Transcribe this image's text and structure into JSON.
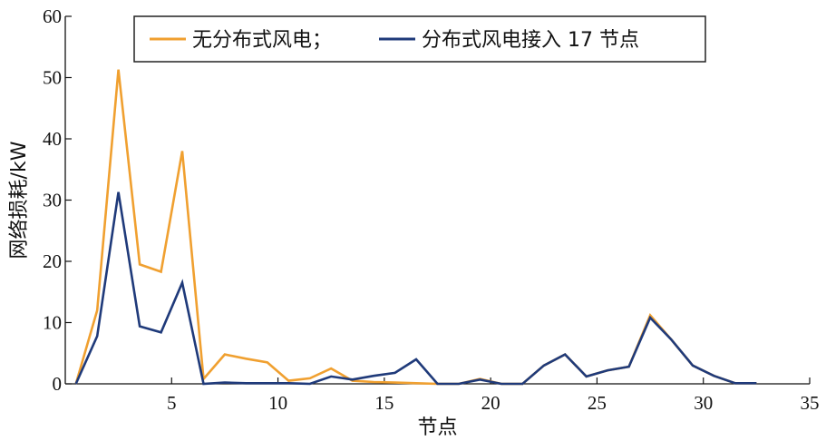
{
  "chart_data": {
    "type": "line",
    "xlabel": "节点",
    "ylabel": "网络损耗/kW",
    "xlim": [
      0,
      35
    ],
    "ylim": [
      0,
      60
    ],
    "xticks": [
      5,
      10,
      15,
      20,
      25,
      30,
      35
    ],
    "yticks": [
      0,
      10,
      20,
      30,
      40,
      50,
      60
    ],
    "grid": false,
    "legend": {
      "placement": "top",
      "text_sep": "；"
    },
    "series": [
      {
        "name": "无分布式风电",
        "color": "#f0a030",
        "x": [
          0.5,
          1.5,
          2.5,
          3.5,
          4.5,
          5.5,
          6.5,
          7.5,
          8.5,
          9.5,
          10.5,
          11.5,
          12.5,
          13.5,
          14.5,
          15.5,
          16.5,
          17.5,
          18.5,
          19.5,
          20.5,
          21.5,
          22.5,
          23.5,
          24.5,
          25.5,
          26.5,
          27.5,
          28.5,
          29.5,
          30.5,
          31.5,
          32.5
        ],
        "values": [
          0,
          12,
          51.3,
          19.5,
          18.3,
          38,
          0.8,
          4.8,
          4.1,
          3.5,
          0.5,
          0.9,
          2.5,
          0.5,
          0.3,
          0.2,
          0.1,
          0,
          0,
          0.8,
          0,
          0,
          3,
          4.8,
          1.2,
          2.2,
          2.8,
          11.2,
          7.2,
          3,
          1.3,
          0.1,
          0.1
        ]
      },
      {
        "name": "分布式风电接入 17 节点",
        "color": "#1f3a7a",
        "x": [
          0.5,
          1.5,
          2.5,
          3.5,
          4.5,
          5.5,
          6.5,
          7.5,
          8.5,
          9.5,
          10.5,
          11.5,
          12.5,
          13.5,
          14.5,
          15.5,
          16.5,
          17.5,
          18.5,
          19.5,
          20.5,
          21.5,
          22.5,
          23.5,
          24.5,
          25.5,
          26.5,
          27.5,
          28.5,
          29.5,
          30.5,
          31.5,
          32.5
        ],
        "values": [
          0,
          7.8,
          31.3,
          9.4,
          8.4,
          16.5,
          0,
          0.2,
          0.1,
          0.1,
          0.1,
          0,
          1.2,
          0.7,
          1.3,
          1.8,
          4,
          0,
          0,
          0.7,
          0,
          0,
          3,
          4.8,
          1.2,
          2.2,
          2.8,
          10.8,
          7.2,
          3,
          1.3,
          0.1,
          0.1
        ]
      }
    ]
  }
}
